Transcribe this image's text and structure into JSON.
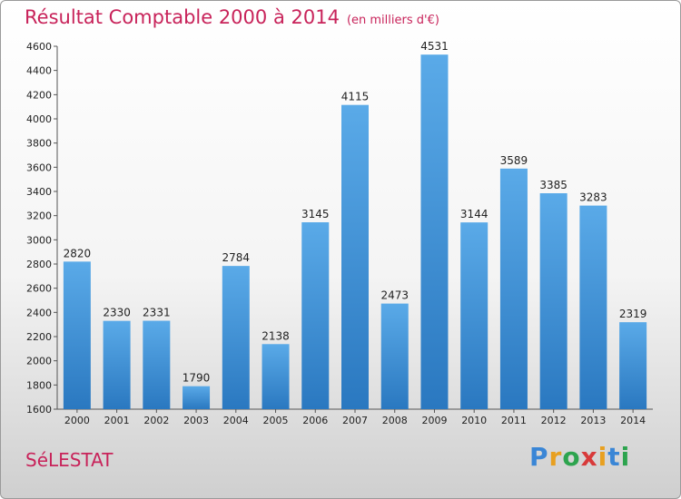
{
  "chart_data": {
    "type": "bar",
    "title": "Résultat Comptable 2000 à 2014",
    "subtitle": "(en milliers d'€)",
    "categories": [
      "2000",
      "2001",
      "2002",
      "2003",
      "2004",
      "2005",
      "2006",
      "2007",
      "2008",
      "2009",
      "2010",
      "2011",
      "2012",
      "2013",
      "2014"
    ],
    "values": [
      2820,
      2330,
      2331,
      1790,
      2784,
      2138,
      3145,
      4115,
      2473,
      4531,
      3144,
      3589,
      3385,
      3283,
      2319
    ],
    "ylim": [
      1600,
      4600
    ],
    "yticks": [
      1600,
      1800,
      2000,
      2200,
      2400,
      2600,
      2800,
      3000,
      3200,
      3400,
      3600,
      3800,
      4000,
      4200,
      4400,
      4600
    ],
    "xlabel": "",
    "ylabel": "",
    "grid": false,
    "bar_color": "#3d8fd6"
  },
  "footer": {
    "city": "SéLESTAT",
    "logo": {
      "p": "P",
      "r": "r",
      "o": "o",
      "x": "x",
      "i": "i",
      "t": "t",
      "i2": "i"
    }
  }
}
